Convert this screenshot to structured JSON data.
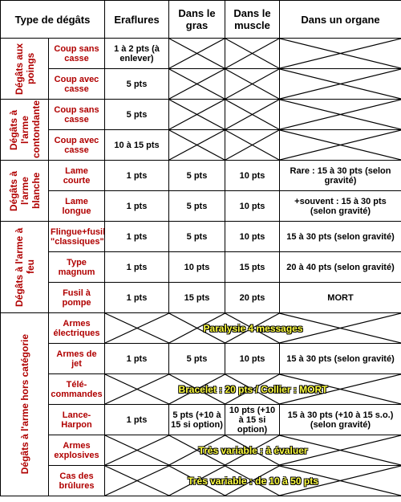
{
  "table": {
    "header": [
      "Type de dégâts",
      "Eraflures",
      "Dans le gras",
      "Dans le muscle",
      "Dans un organe"
    ],
    "groups": [
      {
        "label": "Dégâts aux poings",
        "rows": [
          {
            "type": "Coup sans casse",
            "cells": [
              "1 à 2 pts (à enlever)",
              null,
              null,
              null
            ]
          },
          {
            "type": "Coup avec casse",
            "cells": [
              "5 pts",
              null,
              null,
              null
            ]
          }
        ]
      },
      {
        "label": "Dégâts à l'arme contondante",
        "rows": [
          {
            "type": "Coup sans casse",
            "cells": [
              "5 pts",
              null,
              null,
              null
            ]
          },
          {
            "type": "Coup avec casse",
            "cells": [
              "10 à 15 pts",
              null,
              null,
              null
            ]
          }
        ]
      },
      {
        "label": "Dégâts à l'arme blanche",
        "rows": [
          {
            "type": "Lame courte",
            "cells": [
              "1 pts",
              "5 pts",
              "10 pts",
              "Rare : 15 à 30 pts (selon gravité)"
            ]
          },
          {
            "type": "Lame longue",
            "cells": [
              "1 pts",
              "5 pts",
              "10 pts",
              "+souvent : 15 à 30 pts (selon gravité)"
            ]
          }
        ]
      },
      {
        "label": "Dégâts à l'arme à feu",
        "rows": [
          {
            "type": "Flingue+fusil \"classiques\"",
            "cells": [
              "1 pts",
              "5 pts",
              "10 pts",
              "15 à 30 pts (selon gravité)"
            ]
          },
          {
            "type": "Type magnum",
            "cells": [
              "1 pts",
              "10 pts",
              "15 pts",
              "20 à 40 pts (selon gravité)"
            ]
          },
          {
            "type": "Fusil à pompe",
            "cells": [
              "1 pts",
              "15 pts",
              "20 pts",
              "MORT"
            ]
          }
        ]
      },
      {
        "label": "Dégâts à l'arme hors catégorie",
        "rows": [
          {
            "type": "Armes électriques",
            "note": "Paralysie 4 messages"
          },
          {
            "type": "Armes de jet",
            "cells": [
              "1 pts",
              "5 pts",
              "10 pts",
              "15 à 30 pts (selon gravité)"
            ]
          },
          {
            "type": "Télé-commandes",
            "note": "Bracelet : 20 pts / Collier : MORT"
          },
          {
            "type": "Lance-Harpon",
            "cells": [
              "1 pts",
              "5 pts (+10 à 15 si option)",
              "10 pts (+10 à 15 si option)",
              "15 à 30 pts (+10 à 15 s.o.) (selon gravité)"
            ]
          },
          {
            "type": "Armes explosives",
            "note": "Très variable : à évaluer"
          },
          {
            "type": "Cas des brûlures",
            "note": "Très variable : de 10 à 50 pts"
          }
        ]
      }
    ]
  }
}
